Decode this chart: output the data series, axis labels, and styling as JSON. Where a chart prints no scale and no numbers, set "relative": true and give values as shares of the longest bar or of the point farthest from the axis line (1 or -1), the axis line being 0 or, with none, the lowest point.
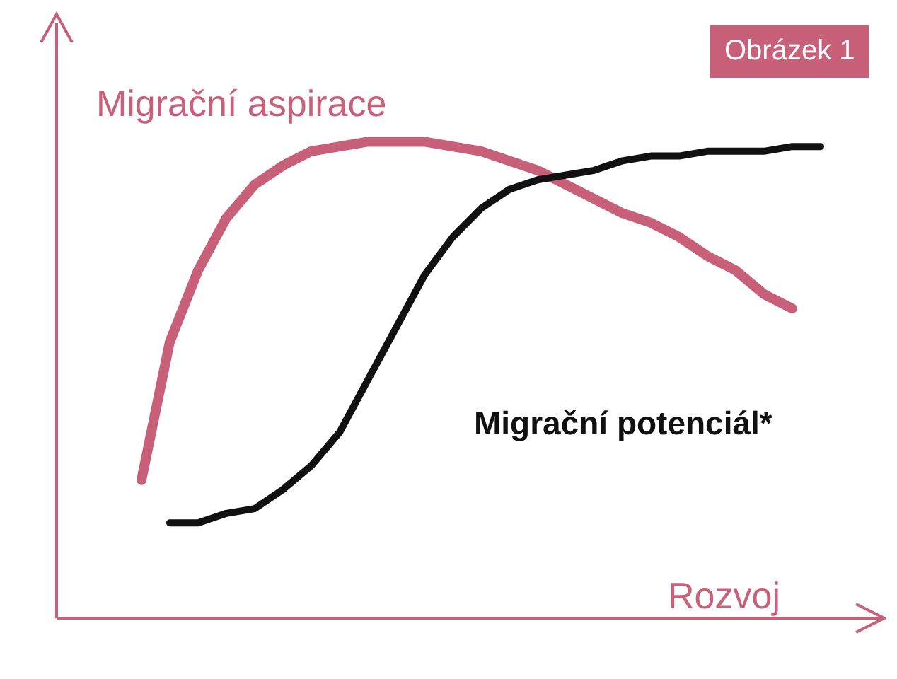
{
  "chart_data": {
    "type": "line",
    "title": "Obrázek 1",
    "xlabel": "Rozvoj",
    "relative": true,
    "grid": false,
    "marker": "none",
    "line_style": "solid",
    "categories": [
      null,
      null,
      null,
      null,
      null,
      null,
      null,
      null,
      null,
      null,
      null,
      null,
      null,
      null,
      null,
      null,
      null,
      null,
      null,
      null,
      null,
      null,
      null,
      null,
      null
    ],
    "series": [
      {
        "name": "Migrační aspirace",
        "color": "#c8607a",
        "values": [
          0.29,
          0.58,
          0.73,
          0.84,
          0.91,
          0.95,
          0.98,
          0.99,
          1,
          1,
          1,
          0.99,
          0.98,
          0.96,
          0.94,
          0.91,
          0.88,
          0.85,
          0.83,
          0.8,
          0.76,
          0.73,
          0.68,
          0.65,
          null
        ]
      },
      {
        "name": "Migrační potenciál*",
        "color": "#111111",
        "values": [
          null,
          0.2,
          0.2,
          0.22,
          0.23,
          0.27,
          0.32,
          0.39,
          0.5,
          0.61,
          0.72,
          0.8,
          0.86,
          0.9,
          0.92,
          0.93,
          0.94,
          0.96,
          0.97,
          0.97,
          0.98,
          0.98,
          0.98,
          0.99,
          0.99
        ]
      }
    ]
  }
}
